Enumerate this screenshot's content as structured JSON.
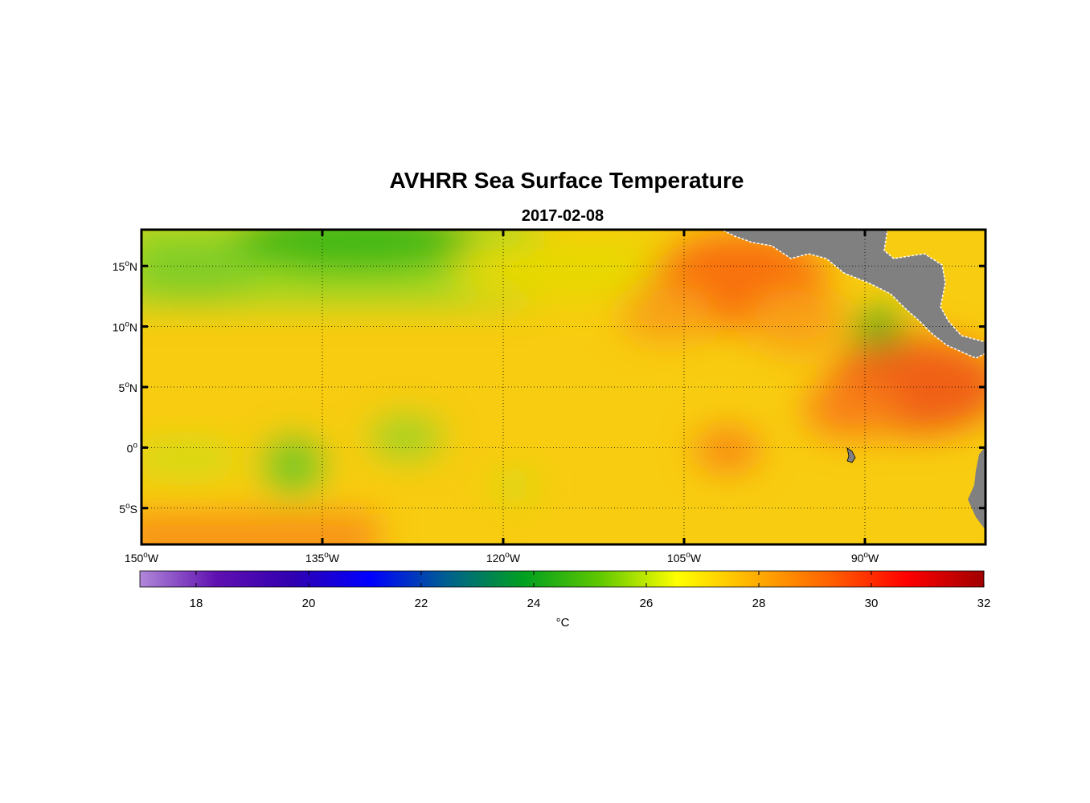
{
  "title": "AVHRR Sea Surface Temperature",
  "subtitle": "2017-02-08",
  "map": {
    "lon_range": [
      -150,
      -80
    ],
    "lat_range": [
      -8,
      18
    ],
    "grid": "dotted",
    "land_color": "#808080",
    "lon_ticks": [
      {
        "value": -150,
        "deg": "150",
        "hemi": "W"
      },
      {
        "value": -135,
        "deg": "135",
        "hemi": "W"
      },
      {
        "value": -120,
        "deg": "120",
        "hemi": "W"
      },
      {
        "value": -105,
        "deg": "105",
        "hemi": "W"
      },
      {
        "value": -90,
        "deg": "90",
        "hemi": "W"
      }
    ],
    "lat_ticks": [
      {
        "value": 15,
        "deg": "15",
        "hemi": "N"
      },
      {
        "value": 10,
        "deg": "10",
        "hemi": "N"
      },
      {
        "value": 5,
        "deg": "5",
        "hemi": "N"
      },
      {
        "value": 0,
        "deg": "0",
        "hemi": ""
      },
      {
        "value": -5,
        "deg": "5",
        "hemi": "S"
      }
    ]
  },
  "colorbar": {
    "min": 17,
    "max": 32,
    "ticks": [
      "18",
      "20",
      "22",
      "24",
      "26",
      "28",
      "30",
      "32"
    ],
    "unit": "°C",
    "colors": [
      "#b088d8",
      "#6010b0",
      "#3000b0",
      "#0000ff",
      "#006090",
      "#00a020",
      "#60c800",
      "#ffff00",
      "#ffb000",
      "#ff6000",
      "#ff0000",
      "#a00000"
    ]
  }
}
